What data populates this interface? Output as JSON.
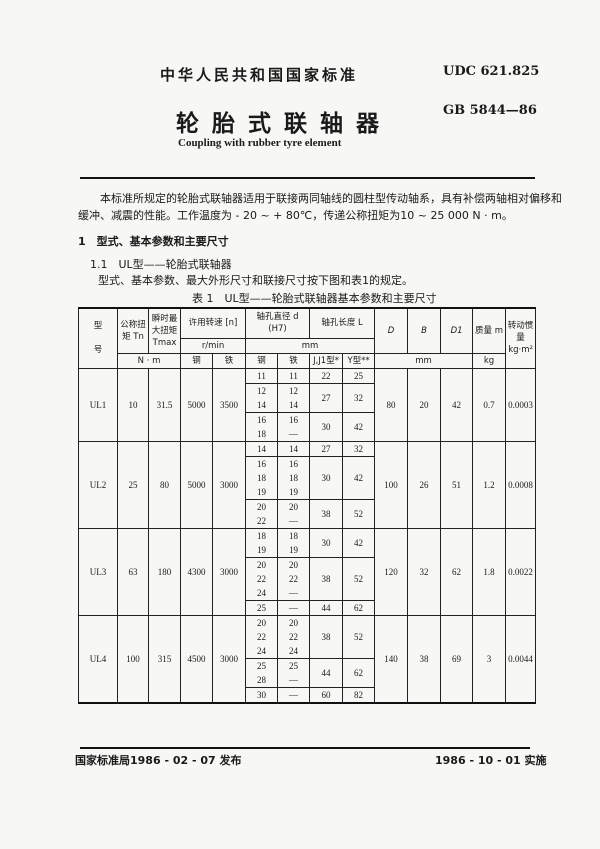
{
  "header": {
    "standard": "中华人民共和国国家标准",
    "udc": "UDC 621.825",
    "gb": "GB 5844—86",
    "title": "轮胎式联轴器",
    "title_en": "Coupling with rubber tyre element"
  },
  "intro": [
    "本标准所规定的轮胎式联轴器适用于联接两同轴线的圆柱型传动轴系，具有补偿两轴相对偏移和",
    "缓冲、减震的性能。工作温度为 - 20 ~ + 80℃，传递公称扭矩为10 ~ 25 000 N · m。"
  ],
  "section1": "1　型式、基本参数和主要尺寸",
  "section11": "1.1　UL型——轮胎式联轴器",
  "section11_text": "型式、基本参数、最大外形尺寸和联接尺寸按下图和表1的规定。",
  "table_caption": "表 1　UL型——轮胎式联轴器基本参数和主要尺寸",
  "table_header": {
    "model": "型\n\n号",
    "tn": "公称扭矩 Tn",
    "tmax": "瞬时最大扭矩 Tmax",
    "speed": "许用转速 [n]",
    "bore_d": "轴孔直径 d (H7)",
    "bore_l": "轴孔长度 L",
    "D": "D",
    "B": "B",
    "D1": "D1",
    "mass": "质量 m",
    "inertia": "转动惯量 kg·m²",
    "unit_rmin": "r/min",
    "unit_mm": "mm",
    "unit_nm": "N · m",
    "steel": "钢",
    "iron": "铁",
    "steel2": "钢",
    "iron2": "铁",
    "lj": "J,J1型*",
    "ly": "Y型**",
    "unit_mm2": "mm",
    "unit_kg": "kg"
  },
  "rows": [
    {
      "model": "UL1",
      "tn": "10",
      "tmax": "31.5",
      "n_steel": "5000",
      "n_iron": "3500",
      "D": "80",
      "B": "20",
      "D1": "42",
      "m": "0.7",
      "inertia": "0.0003",
      "groups": [
        {
          "steel": [
            "11"
          ],
          "iron": [
            "11"
          ],
          "LJ": "22",
          "LY": "25"
        },
        {
          "steel": [
            "12",
            "14"
          ],
          "iron": [
            "12",
            "14"
          ],
          "LJ": "27",
          "LY": "32"
        },
        {
          "steel": [
            "16",
            "18"
          ],
          "iron": [
            "16",
            "—"
          ],
          "LJ": "30",
          "LY": "42"
        }
      ]
    },
    {
      "model": "UL2",
      "tn": "25",
      "tmax": "80",
      "n_steel": "5000",
      "n_iron": "3000",
      "D": "100",
      "B": "26",
      "D1": "51",
      "m": "1.2",
      "inertia": "0.0008",
      "groups": [
        {
          "steel": [
            "14"
          ],
          "iron": [
            "14"
          ],
          "LJ": "27",
          "LY": "32"
        },
        {
          "steel": [
            "16",
            "18",
            "19"
          ],
          "iron": [
            "16",
            "18",
            "19"
          ],
          "LJ": "30",
          "LY": "42"
        },
        {
          "steel": [
            "20",
            "22"
          ],
          "iron": [
            "20",
            "—"
          ],
          "LJ": "38",
          "LY": "52"
        }
      ]
    },
    {
      "model": "UL3",
      "tn": "63",
      "tmax": "180",
      "n_steel": "4300",
      "n_iron": "3000",
      "D": "120",
      "B": "32",
      "D1": "62",
      "m": "1.8",
      "inertia": "0.0022",
      "groups": [
        {
          "steel": [
            "18",
            "19"
          ],
          "iron": [
            "18",
            "19"
          ],
          "LJ": "30",
          "LY": "42"
        },
        {
          "steel": [
            "20",
            "22",
            "24"
          ],
          "iron": [
            "20",
            "22",
            "—"
          ],
          "LJ": "38",
          "LY": "52"
        },
        {
          "steel": [
            "25"
          ],
          "iron": [
            "—"
          ],
          "LJ": "44",
          "LY": "62"
        }
      ]
    },
    {
      "model": "UL4",
      "tn": "100",
      "tmax": "315",
      "n_steel": "4500",
      "n_iron": "3000",
      "D": "140",
      "B": "38",
      "D1": "69",
      "m": "3",
      "inertia": "0.0044",
      "groups": [
        {
          "steel": [
            "20",
            "22",
            "24"
          ],
          "iron": [
            "20",
            "22",
            "24"
          ],
          "LJ": "38",
          "LY": "52"
        },
        {
          "steel": [
            "25",
            "28"
          ],
          "iron": [
            "25",
            "—"
          ],
          "LJ": "44",
          "LY": "62"
        },
        {
          "steel": [
            "30"
          ],
          "iron": [
            "—"
          ],
          "LJ": "60",
          "LY": "82"
        }
      ]
    }
  ],
  "footer": {
    "issued": "国家标准局1986 - 02 - 07 发布",
    "effective": "1986 - 10 - 01 实施"
  }
}
